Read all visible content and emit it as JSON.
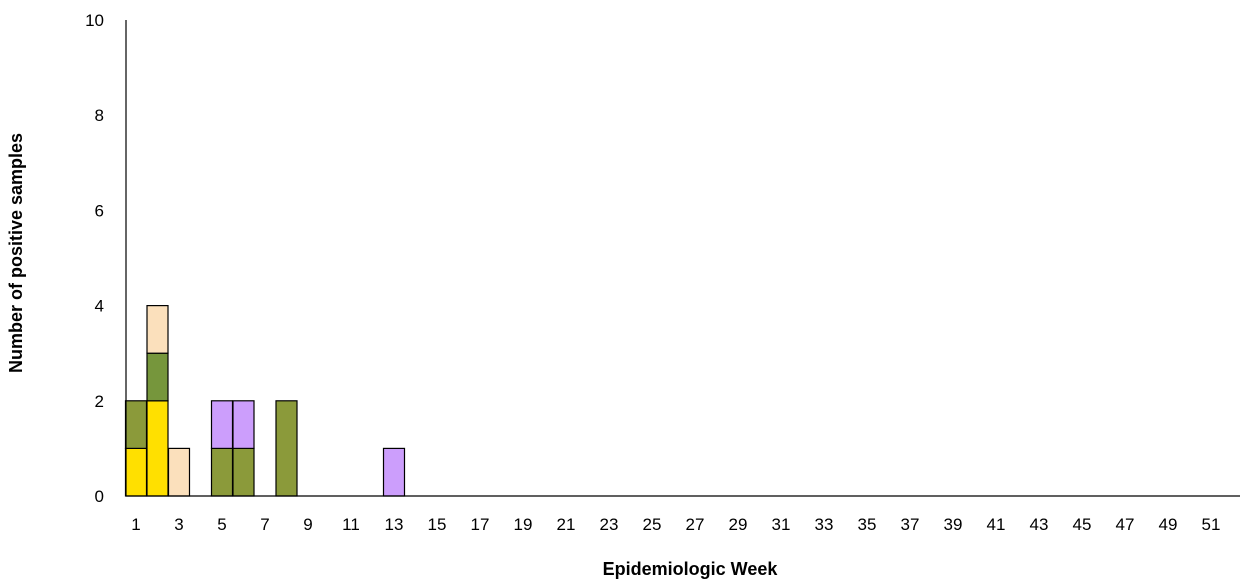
{
  "chart_data": {
    "type": "bar",
    "stacked": true,
    "title": "",
    "xlabel": "Epidemiologic Week",
    "ylabel": "Number of positive samples",
    "ylim": [
      0,
      10
    ],
    "yticks": [
      0,
      2,
      4,
      6,
      8,
      10
    ],
    "weeks": [
      1,
      52
    ],
    "xtick_labels": [
      "1",
      "3",
      "5",
      "7",
      "9",
      "11",
      "13",
      "15",
      "17",
      "19",
      "21",
      "23",
      "25",
      "27",
      "29",
      "31",
      "33",
      "35",
      "37",
      "39",
      "41",
      "43",
      "45",
      "47",
      "49",
      "51"
    ],
    "grid": false,
    "legend": "none",
    "series": [
      {
        "color": "#FFE000",
        "values": {
          "1": 1,
          "2": 2
        }
      },
      {
        "color": "#8B9A3A",
        "values": {
          "1": 1,
          "5": 1,
          "6": 1,
          "8": 2
        }
      },
      {
        "color": "#76963C",
        "values": {
          "2": 1
        }
      },
      {
        "color": "#FBE0BC",
        "values": {
          "2": 1,
          "3": 1
        }
      },
      {
        "color": "#CC9EFC",
        "values": {
          "5": 1,
          "6": 1,
          "13": 1
        }
      }
    ]
  }
}
